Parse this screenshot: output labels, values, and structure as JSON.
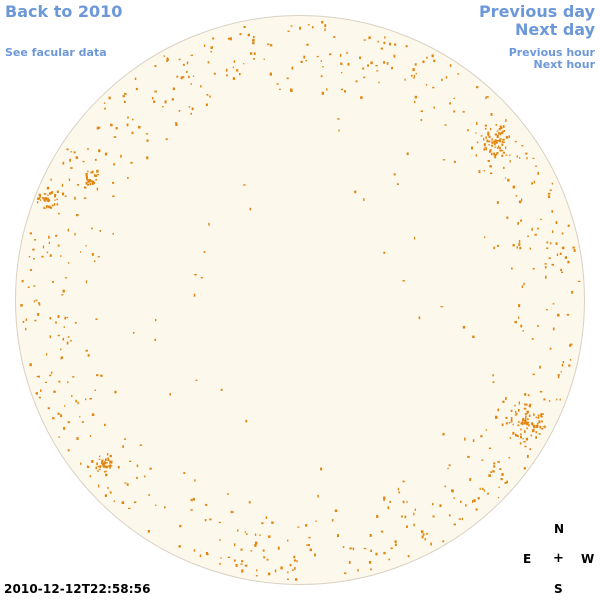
{
  "links": {
    "back": "Back to 2010",
    "see_facular": "See facular data",
    "previous_day": "Previous day",
    "next_day": "Next day",
    "previous_hour": "Previous hour",
    "next_hour": "Next hour"
  },
  "timestamp": "2010-12-12T22:58:56",
  "compass": {
    "north": "N",
    "east": "E",
    "center": "+",
    "west": "W",
    "south": "S"
  },
  "colors": {
    "disk": "#fdf8ec",
    "facula": "#e2850f",
    "link": "#6d98d8"
  }
}
